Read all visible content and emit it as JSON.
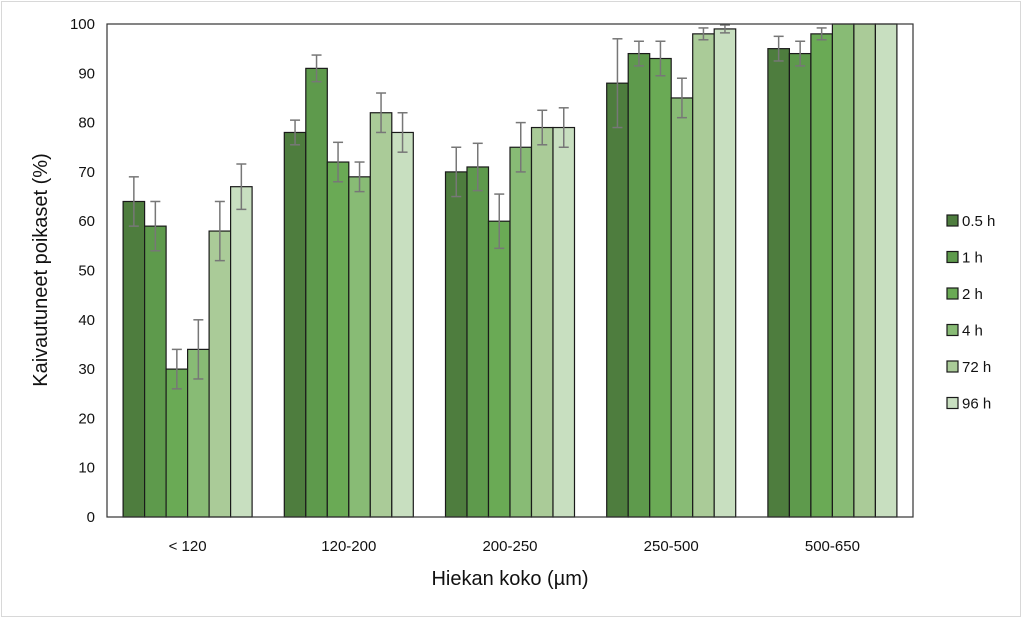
{
  "chart_data": {
    "type": "bar",
    "title": "",
    "xlabel": "Hiekan koko (µm)",
    "ylabel": "Kaivautuneet poikaset (%)",
    "ylim": [
      0,
      100
    ],
    "yticks": [
      0,
      10,
      20,
      30,
      40,
      50,
      60,
      70,
      80,
      90,
      100
    ],
    "grid": false,
    "legend_position": "right",
    "categories": [
      "< 120",
      "120-200",
      "200-250",
      "250-500",
      "500-650"
    ],
    "series": [
      {
        "name": "0.5 h",
        "color": "#4e7d3e",
        "values": [
          64,
          78,
          70,
          88,
          95
        ],
        "errors": [
          5,
          2.5,
          5,
          9,
          2.5
        ]
      },
      {
        "name": "1 h",
        "color": "#5e9a4c",
        "values": [
          59,
          91,
          71,
          94,
          94
        ],
        "errors": [
          5,
          2.7,
          4.8,
          2.5,
          2.5
        ]
      },
      {
        "name": "2 h",
        "color": "#6aaa55",
        "values": [
          30,
          72,
          60,
          93,
          98
        ],
        "errors": [
          4,
          4,
          5.5,
          3.5,
          1.2
        ]
      },
      {
        "name": "4 h",
        "color": "#88bb75",
        "values": [
          34,
          69,
          75,
          85,
          100
        ],
        "errors": [
          6,
          3,
          5,
          4,
          0
        ]
      },
      {
        "name": "72 h",
        "color": "#aacb98",
        "values": [
          58,
          82,
          79,
          98,
          100
        ],
        "errors": [
          6,
          4,
          3.5,
          1.2,
          0
        ]
      },
      {
        "name": "96 h",
        "color": "#c8dfc0",
        "values": [
          67,
          78,
          79,
          99,
          100
        ],
        "errors": [
          4.6,
          4,
          4,
          0.8,
          0
        ]
      }
    ]
  }
}
